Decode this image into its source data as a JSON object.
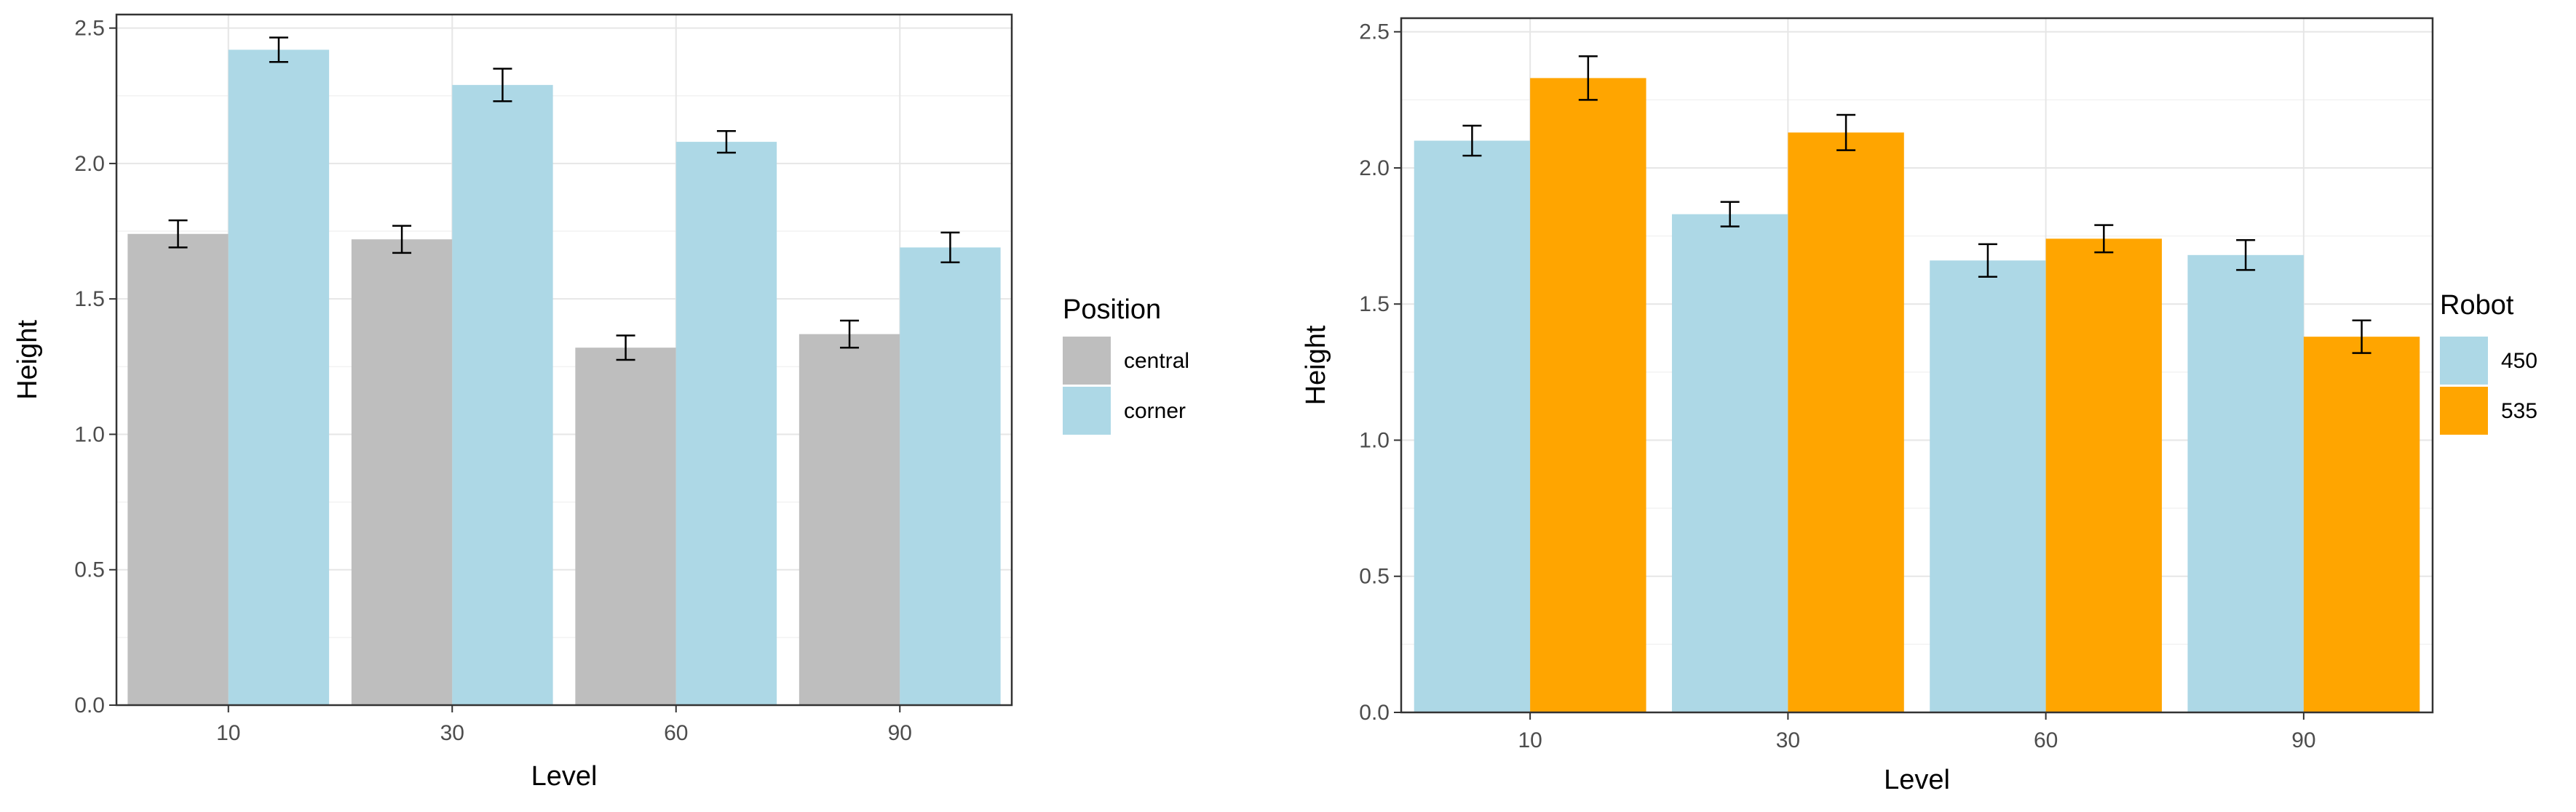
{
  "chart_data": [
    {
      "type": "bar",
      "xlabel": "Level",
      "ylabel": "Height",
      "categories": [
        "10",
        "30",
        "60",
        "90"
      ],
      "ylim": [
        0,
        2.55
      ],
      "yticks": [
        "0.0",
        "0.5",
        "1.0",
        "1.5",
        "2.0",
        "2.5"
      ],
      "legend_title": "Position",
      "legend_position": "right",
      "grid": true,
      "series": [
        {
          "name": "central",
          "color": "#bebebe",
          "values": [
            1.74,
            1.72,
            1.32,
            1.37
          ],
          "errors": [
            0.05,
            0.05,
            0.045,
            0.05
          ]
        },
        {
          "name": "corner",
          "color": "#add8e6",
          "values": [
            2.42,
            2.29,
            2.08,
            1.69
          ],
          "errors": [
            0.045,
            0.06,
            0.04,
            0.055
          ]
        }
      ]
    },
    {
      "type": "bar",
      "xlabel": "Level",
      "ylabel": "Height",
      "categories": [
        "10",
        "30",
        "60",
        "90"
      ],
      "ylim": [
        0,
        2.55
      ],
      "yticks": [
        "0.0",
        "0.5",
        "1.0",
        "1.5",
        "2.0",
        "2.5"
      ],
      "legend_title": "Robot",
      "legend_position": "right",
      "grid": true,
      "series": [
        {
          "name": "450",
          "color": "#add8e6",
          "values": [
            2.1,
            1.83,
            1.66,
            1.68
          ],
          "errors": [
            0.055,
            0.045,
            0.06,
            0.055
          ]
        },
        {
          "name": "535",
          "color": "#ffa500",
          "values": [
            2.33,
            2.13,
            1.74,
            1.38
          ],
          "errors": [
            0.08,
            0.065,
            0.05,
            0.06
          ]
        }
      ]
    }
  ]
}
